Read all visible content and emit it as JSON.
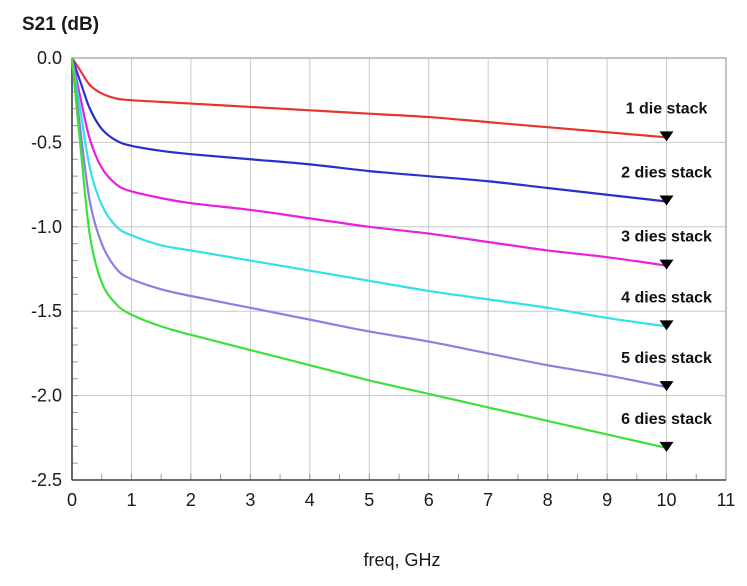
{
  "chart_data": {
    "type": "line",
    "title": "",
    "ylabel": "S21 (dB)",
    "xlabel": "freq, GHz",
    "xlim": [
      0,
      11
    ],
    "ylim": [
      -2.5,
      0.0
    ],
    "grid": true,
    "x_ticks": [
      0,
      1,
      2,
      3,
      4,
      5,
      6,
      7,
      8,
      9,
      10,
      11
    ],
    "y_ticks": [
      0.0,
      -0.5,
      -1.0,
      -1.5,
      -2.0,
      -2.5
    ],
    "x_tick_labels": [
      "0",
      "1",
      "2",
      "3",
      "4",
      "5",
      "6",
      "7",
      "8",
      "9",
      "10",
      "11"
    ],
    "y_tick_labels": [
      "0.0",
      "-0.5",
      "-1.0",
      "-1.5",
      "-2.0",
      "-2.5"
    ],
    "series": [
      {
        "name": "1 die stack",
        "color": "#e8332f",
        "x": [
          0,
          0.15,
          0.3,
          0.5,
          0.75,
          1,
          1.5,
          2,
          3,
          4,
          5,
          6,
          7,
          8,
          9,
          10
        ],
        "values": [
          0,
          -0.08,
          -0.16,
          -0.21,
          -0.24,
          -0.25,
          -0.26,
          -0.27,
          -0.29,
          -0.31,
          -0.33,
          -0.35,
          -0.38,
          -0.41,
          -0.44,
          -0.47
        ]
      },
      {
        "name": "2 dies stack",
        "color": "#2a2fcc",
        "x": [
          0,
          0.15,
          0.3,
          0.5,
          0.75,
          1,
          1.5,
          2,
          3,
          4,
          5,
          6,
          7,
          8,
          9,
          10
        ],
        "values": [
          0,
          -0.15,
          -0.3,
          -0.42,
          -0.49,
          -0.52,
          -0.55,
          -0.57,
          -0.6,
          -0.63,
          -0.67,
          -0.7,
          -0.73,
          -0.77,
          -0.81,
          -0.85
        ]
      },
      {
        "name": "3 dies stack",
        "color": "#e620e0",
        "x": [
          0,
          0.15,
          0.3,
          0.5,
          0.75,
          1,
          1.5,
          2,
          3,
          4,
          5,
          6,
          7,
          8,
          9,
          10
        ],
        "values": [
          0,
          -0.25,
          -0.48,
          -0.65,
          -0.75,
          -0.79,
          -0.83,
          -0.86,
          -0.9,
          -0.95,
          -1.0,
          -1.04,
          -1.09,
          -1.14,
          -1.18,
          -1.23
        ]
      },
      {
        "name": "4 dies stack",
        "color": "#33e0e6",
        "x": [
          0,
          0.15,
          0.3,
          0.5,
          0.75,
          1,
          1.5,
          2,
          3,
          4,
          5,
          6,
          7,
          8,
          9,
          10
        ],
        "values": [
          0,
          -0.33,
          -0.65,
          -0.87,
          -1.0,
          -1.05,
          -1.11,
          -1.14,
          -1.2,
          -1.26,
          -1.32,
          -1.38,
          -1.43,
          -1.48,
          -1.54,
          -1.59
        ]
      },
      {
        "name": "5 dies stack",
        "color": "#8a80e0",
        "x": [
          0,
          0.15,
          0.3,
          0.5,
          0.75,
          1,
          1.5,
          2,
          3,
          4,
          5,
          6,
          7,
          8,
          9,
          10
        ],
        "values": [
          0,
          -0.45,
          -0.85,
          -1.1,
          -1.25,
          -1.31,
          -1.37,
          -1.41,
          -1.48,
          -1.55,
          -1.62,
          -1.68,
          -1.75,
          -1.82,
          -1.88,
          -1.95
        ]
      },
      {
        "name": "6 dies stack",
        "color": "#3ce03a",
        "x": [
          0,
          0.15,
          0.3,
          0.5,
          0.75,
          1,
          1.5,
          2,
          3,
          4,
          5,
          6,
          7,
          8,
          9,
          10
        ],
        "values": [
          0,
          -0.55,
          -1.05,
          -1.33,
          -1.46,
          -1.52,
          -1.59,
          -1.64,
          -1.73,
          -1.82,
          -1.91,
          -1.99,
          -2.07,
          -2.15,
          -2.23,
          -2.31
        ]
      }
    ],
    "markers": {
      "shape": "triangle-down",
      "x": 10,
      "color": "#000000"
    }
  }
}
